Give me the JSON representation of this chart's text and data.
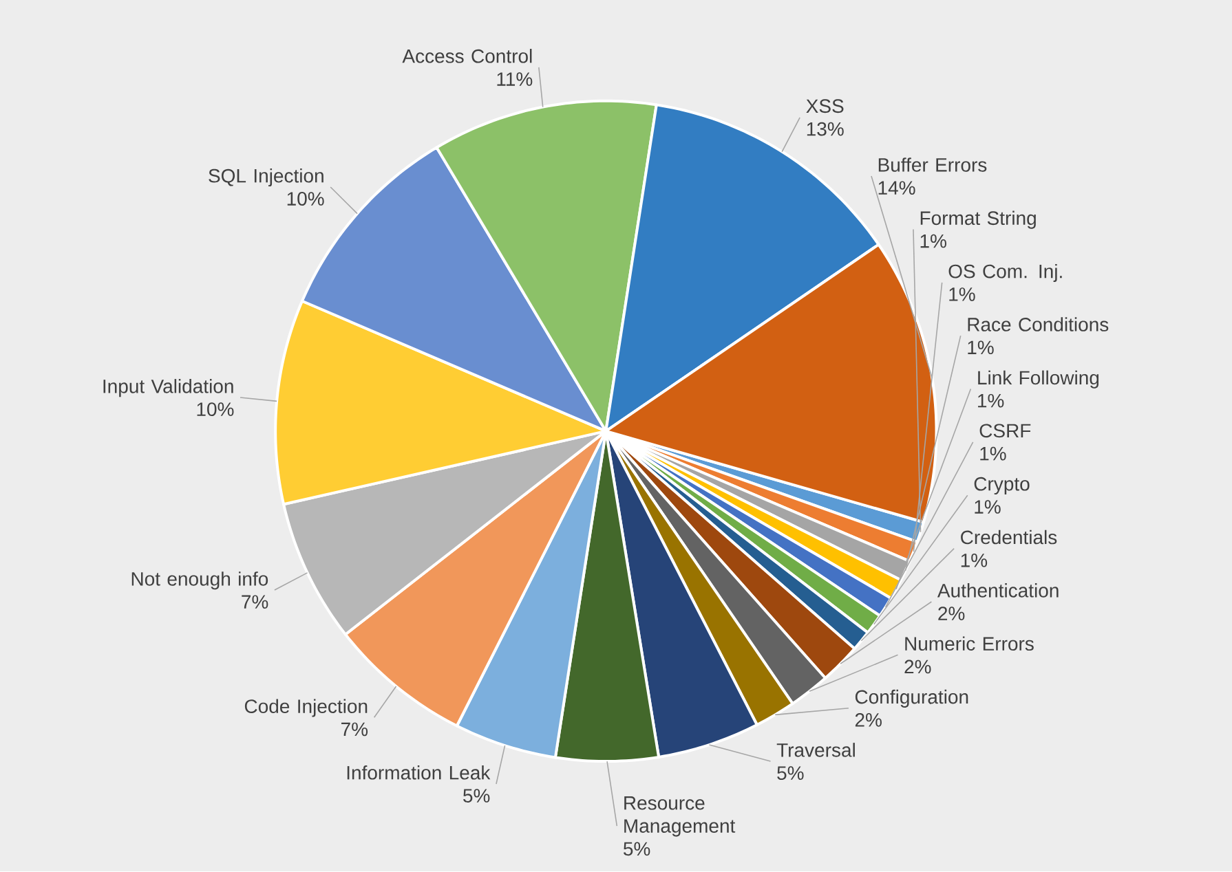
{
  "chart_data": {
    "type": "pie",
    "categories": [
      "Format String",
      "OS Com. Inj.",
      "Race Conditions",
      "Link Following",
      "CSRF",
      "Crypto",
      "Credentials",
      "Authentication",
      "Numeric Errors",
      "Configuration",
      "Traversal",
      "Resource Management",
      "Information Leak",
      "Code Injection",
      "Not enough info",
      "Input Validation",
      "SQL Injection",
      "Access Control",
      "XSS",
      "Buffer Errors"
    ],
    "values": [
      1,
      1,
      1,
      1,
      1,
      1,
      1,
      2,
      2,
      2,
      5,
      5,
      5,
      7,
      7,
      10,
      10,
      11,
      13,
      14
    ],
    "value_labels": [
      "1%",
      "1%",
      "1%",
      "1%",
      "1%",
      "1%",
      "1%",
      "2%",
      "2%",
      "2%",
      "5%",
      "5%",
      "5%",
      "7%",
      "7%",
      "10%",
      "10%",
      "11%",
      "13%",
      "14%"
    ],
    "colors": [
      "#5B9BD5",
      "#ED7D31",
      "#A5A5A5",
      "#FFC000",
      "#4472C4",
      "#70AD47",
      "#255E91",
      "#9E480E",
      "#636363",
      "#997300",
      "#264478",
      "#43682B",
      "#7CAFDD",
      "#F1975A",
      "#B7B7B7",
      "#FFCD33",
      "#698ED0",
      "#8CC168",
      "#327DC2",
      "#D26012"
    ]
  }
}
